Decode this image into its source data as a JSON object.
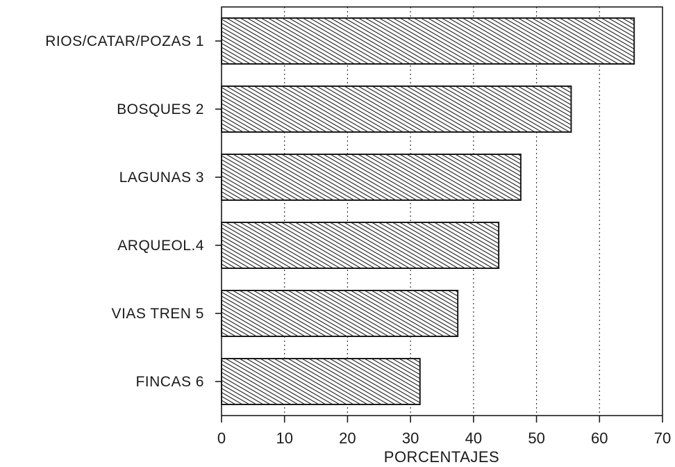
{
  "chart_data": {
    "type": "bar",
    "orientation": "horizontal",
    "categories": [
      "RIOS/CATAR/POZAS 1",
      "BOSQUES 2",
      "LAGUNAS 3",
      "ARQUEOL.4",
      "VIAS TREN 5",
      "FINCAS 6"
    ],
    "values": [
      65.5,
      55.5,
      47.5,
      44,
      37.5,
      31.5
    ],
    "xlabel": "PORCENTAJES",
    "ylabel": "",
    "xlim": [
      0,
      70
    ],
    "xticks": [
      "0",
      "10",
      "20",
      "30",
      "40",
      "50",
      "60",
      "70"
    ],
    "grid": "vertical dotted",
    "bar_fill": "diagonal hatch",
    "colors": {
      "ink": "#1a1a1a",
      "background": "#ffffff"
    }
  }
}
